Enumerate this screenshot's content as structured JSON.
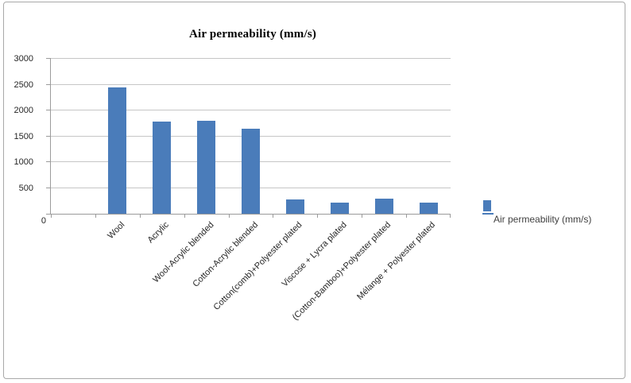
{
  "chart_data": {
    "type": "bar",
    "title": "Air permeability (mm/s)",
    "legend": [
      "Air permeability (mm/s)"
    ],
    "legend_position": "right",
    "categories": [
      "Wool",
      "Acrylic",
      "Wool-Acrylic blended",
      "Cotton-Acrylic blended",
      "Cotton(comb)+Polyester plated",
      "Viscose + Lycra plated",
      "(Cotton-Bamboo)+Polyester  plated",
      "Mélange + Polyester  plated"
    ],
    "values": [
      2450,
      1780,
      1800,
      1650,
      280,
      210,
      290,
      220
    ],
    "xlabel": "",
    "ylabel": "",
    "ylim": [
      0,
      3000
    ],
    "yticks": [
      0,
      500,
      1000,
      1500,
      2000,
      2500,
      3000
    ],
    "grid": true,
    "bar_color": "#4a7cba",
    "gridline_color": "#c6c6c6",
    "axis_color": "#9b9b9b",
    "frame_color": "#a9a9a9",
    "tick_label_color": "#262626"
  }
}
